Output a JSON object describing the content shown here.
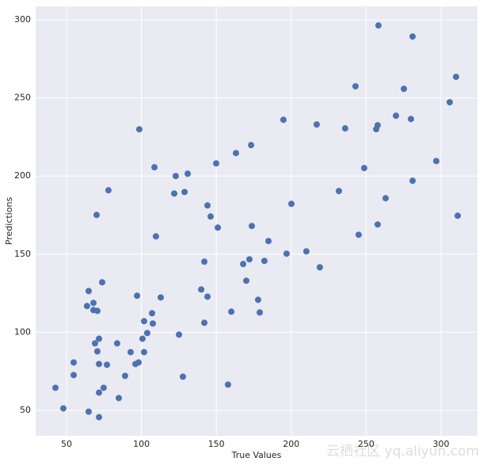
{
  "chart_data": {
    "type": "scatter",
    "xlabel": "True Values",
    "ylabel": "Predictions",
    "watermark": "云栖社区 yq.aliyun.com",
    "color": "#4c72b0",
    "grid": true,
    "xlim": [
      29.4,
      324.3
    ],
    "ylim": [
      33.8,
      308.6
    ],
    "xticks": [
      50,
      100,
      150,
      200,
      250,
      300
    ],
    "yticks": [
      50,
      100,
      150,
      200,
      250,
      300
    ],
    "x": [
      42.6,
      47.9,
      54.8,
      54.8,
      64.8,
      71.7,
      63.7,
      64.8,
      68.0,
      68.0,
      70.6,
      73.8,
      70.1,
      78.0,
      69.0,
      70.6,
      71.7,
      71.7,
      77.0,
      74.8,
      71.7,
      83.8,
      84.9,
      89.1,
      92.8,
      96.0,
      98.1,
      97.1,
      98.6,
      100.7,
      101.8,
      101.8,
      103.9,
      107.1,
      107.6,
      108.7,
      109.7,
      112.9,
      122.9,
      121.9,
      125.1,
      127.7,
      128.8,
      130.9,
      139.9,
      142.0,
      142.0,
      144.1,
      144.1,
      146.2,
      151.0,
      149.9,
      157.8,
      160.0,
      163.1,
      167.9,
      170.0,
      172.1,
      173.2,
      173.7,
      177.9,
      179.0,
      182.1,
      184.8,
      194.8,
      196.9,
      200.1,
      210.1,
      217.0,
      219.1,
      231.8,
      236.0,
      242.9,
      245.0,
      248.7,
      256.7,
      257.7,
      258.2,
      257.7,
      263.0,
      269.9,
      275.2,
      279.9,
      281.0,
      281.0,
      296.8,
      305.8,
      310.0,
      311.1
    ],
    "values": [
      64.5,
      51.3,
      80.7,
      72.6,
      49.2,
      45.7,
      116.8,
      126.4,
      118.8,
      114.2,
      113.7,
      132.0,
      175.1,
      190.9,
      92.9,
      87.8,
      95.9,
      79.7,
      79.2,
      64.5,
      61.4,
      92.9,
      57.9,
      72.1,
      87.3,
      79.7,
      80.7,
      123.4,
      229.9,
      95.9,
      107.1,
      87.3,
      99.5,
      112.2,
      105.6,
      205.6,
      161.4,
      122.3,
      200.0,
      188.8,
      98.5,
      71.6,
      189.8,
      201.5,
      127.4,
      145.2,
      106.1,
      122.8,
      181.2,
      174.1,
      167.0,
      208.1,
      66.5,
      113.2,
      214.7,
      143.7,
      133.0,
      146.7,
      219.8,
      168.0,
      120.8,
      112.7,
      145.7,
      158.4,
      236.0,
      150.3,
      182.2,
      151.8,
      233.0,
      141.6,
      190.4,
      230.5,
      257.4,
      162.4,
      205.1,
      230.0,
      232.5,
      296.4,
      169.0,
      185.8,
      238.6,
      255.8,
      236.5,
      289.3,
      197.0,
      209.6,
      247.2,
      263.5,
      174.6
    ]
  }
}
